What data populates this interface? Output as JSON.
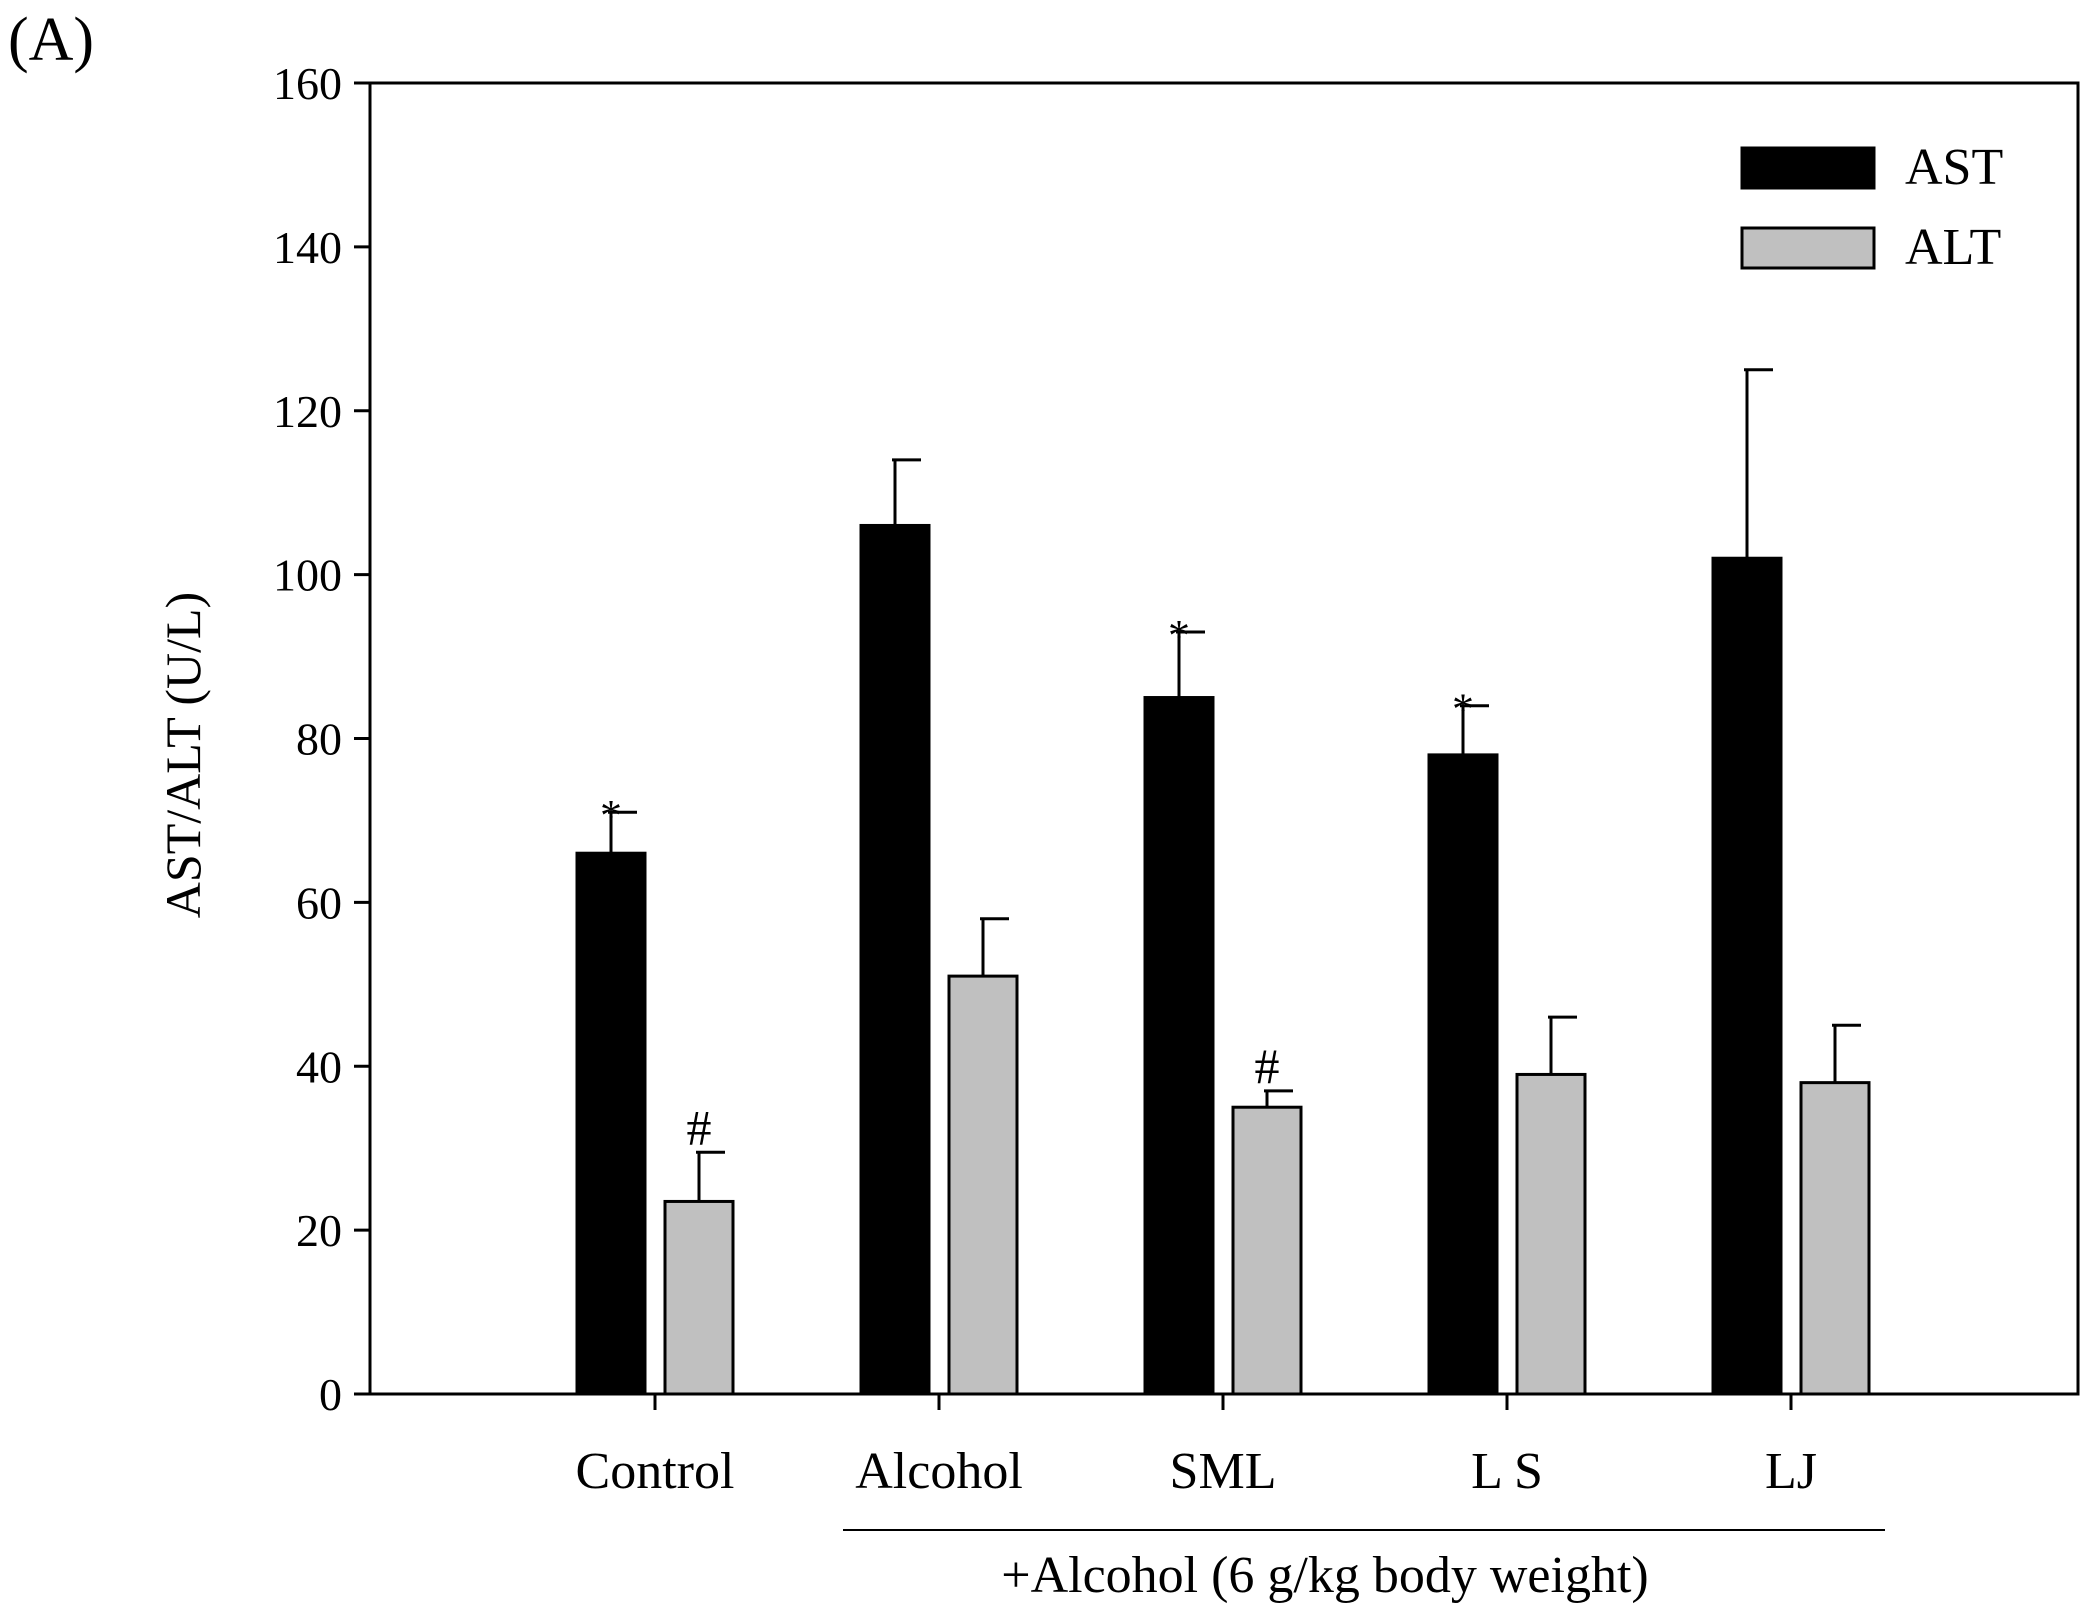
{
  "panel_label": "(A)",
  "chart_data": {
    "type": "bar",
    "title": "",
    "xlabel": "",
    "ylabel": "AST/ALT (U/L)",
    "ylim": [
      0,
      160
    ],
    "yticks": [
      0,
      20,
      40,
      60,
      80,
      100,
      120,
      140,
      160
    ],
    "categories": [
      "Control",
      "Alcohol",
      "SML",
      "L S",
      "LJ"
    ],
    "group_label": "+Alcohol (6 g/kg body weight)",
    "series": [
      {
        "name": "AST",
        "color": "#000000",
        "values": [
          66,
          106,
          85,
          78,
          102
        ],
        "errors": [
          5,
          8,
          8,
          6,
          23
        ],
        "significance": [
          "*",
          "",
          "*",
          "*",
          ""
        ]
      },
      {
        "name": "ALT",
        "color": "#c0c0c0",
        "values": [
          23.5,
          51,
          35,
          39,
          38
        ],
        "errors": [
          6,
          7,
          2,
          7,
          7
        ],
        "significance": [
          "#",
          "",
          "#",
          "",
          ""
        ]
      }
    ],
    "legend_position": "top-right",
    "grid": false
  }
}
